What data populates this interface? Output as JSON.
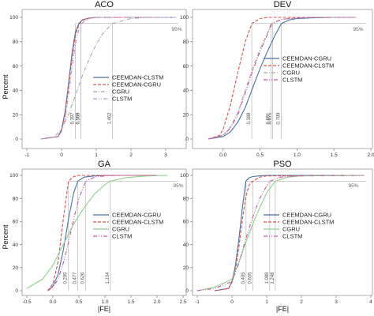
{
  "figure": {
    "ylabel": "Percent",
    "xlabel": "|FE|"
  },
  "chart_data": [
    {
      "type": "line",
      "title": "ACO",
      "xlabel": "",
      "ylabel": "Percent",
      "xlim": [
        -1,
        3.5
      ],
      "ylim": [
        0,
        100
      ],
      "xticks": [
        "-1",
        "0",
        "1",
        "2",
        "3"
      ],
      "yticks": [
        "0",
        "20",
        "40",
        "60",
        "80",
        "100"
      ],
      "percentile_label": "95%",
      "legend": {
        "position": "center-right"
      },
      "annotations": [
        "0.397",
        "0.559",
        "0.560",
        "1.462"
      ],
      "series": [
        {
          "name": "CEEMDAN-CLSTM",
          "color": "#4a6fa5",
          "dash": "solid",
          "x": [
            -0.6,
            -0.1,
            0.0,
            0.1,
            0.2,
            0.3,
            0.4,
            0.5,
            0.6,
            0.8,
            1.0,
            3.3
          ],
          "y": [
            0,
            2,
            8,
            22,
            45,
            70,
            88,
            95,
            98,
            99.5,
            100,
            100
          ]
        },
        {
          "name": "CEEMDAN-CGRU",
          "color": "#d9534f",
          "dash": "dashed",
          "x": [
            -0.6,
            -0.1,
            0.0,
            0.1,
            0.2,
            0.3,
            0.4,
            0.5,
            0.6,
            0.8,
            1.0,
            3.3
          ],
          "y": [
            0,
            2,
            7,
            20,
            42,
            66,
            85,
            94,
            97.5,
            99.5,
            100,
            100
          ]
        },
        {
          "name": "CGRU",
          "color": "#a8a8a8",
          "dash": "dashdot",
          "x": [
            -0.6,
            -0.2,
            0.0,
            0.2,
            0.4,
            0.6,
            0.8,
            1.0,
            1.2,
            1.46,
            2.0,
            2.5,
            3.3
          ],
          "y": [
            0,
            2,
            8,
            20,
            36,
            52,
            66,
            78,
            87,
            95,
            99,
            100,
            100
          ]
        },
        {
          "name": "CLSTM",
          "color": "#b59ad1",
          "dash": "dashdotdot",
          "x": [
            -0.6,
            -0.1,
            0.0,
            0.1,
            0.2,
            0.3,
            0.4,
            0.5,
            0.6,
            0.8,
            1.0,
            3.3
          ],
          "y": [
            0,
            2,
            6,
            16,
            36,
            58,
            78,
            90,
            95.5,
            99,
            100,
            100
          ]
        }
      ]
    },
    {
      "type": "line",
      "title": "DEV",
      "xlabel": "",
      "ylabel": "",
      "xlim": [
        -0.35,
        2.0
      ],
      "ylim": [
        0,
        100
      ],
      "xticks": [
        "0.0",
        "0.5",
        "1.0",
        "1.5",
        "2.0"
      ],
      "yticks": [
        "0",
        "20",
        "40",
        "60",
        "80",
        "100"
      ],
      "percentile_label": "95%",
      "legend": {
        "position": "center-right"
      },
      "annotations": [
        "0.388",
        "0.651",
        "0.671",
        "0.789"
      ],
      "series": [
        {
          "name": "CEEMDAN-CGRU",
          "color": "#4a6fa5",
          "dash": "solid",
          "x": [
            -0.2,
            0.0,
            0.1,
            0.2,
            0.3,
            0.4,
            0.5,
            0.6,
            0.7,
            0.79,
            0.9,
            1.0,
            1.2,
            1.5,
            1.8
          ],
          "y": [
            0,
            2,
            6,
            14,
            26,
            42,
            58,
            72,
            85,
            95,
            98,
            99,
            99.6,
            100,
            100
          ]
        },
        {
          "name": "CEEMDAN-CLSTM",
          "color": "#d9534f",
          "dash": "dashed",
          "x": [
            -0.2,
            -0.05,
            0.0,
            0.1,
            0.2,
            0.3,
            0.39,
            0.5,
            0.6,
            0.8,
            1.8
          ],
          "y": [
            0,
            3,
            8,
            28,
            55,
            80,
            95,
            99,
            100,
            100,
            100
          ]
        },
        {
          "name": "CGRU",
          "color": "#a8a8a8",
          "dash": "dashdot",
          "x": [
            -0.2,
            0.0,
            0.1,
            0.2,
            0.3,
            0.4,
            0.5,
            0.6,
            0.67,
            0.8,
            1.0,
            1.2,
            1.8
          ],
          "y": [
            0,
            3,
            10,
            22,
            40,
            58,
            74,
            87,
            95,
            98.5,
            99.5,
            100,
            100
          ]
        },
        {
          "name": "CLSTM",
          "color": "#c45aa8",
          "dash": "dashdotdot",
          "x": [
            -0.2,
            0.0,
            0.1,
            0.2,
            0.3,
            0.4,
            0.5,
            0.6,
            0.65,
            0.8,
            1.0,
            1.2,
            1.8
          ],
          "y": [
            0,
            3,
            9,
            20,
            38,
            56,
            72,
            86,
            95,
            98.5,
            99.5,
            100,
            100
          ]
        }
      ]
    },
    {
      "type": "line",
      "title": "GA",
      "xlabel": "|FE|",
      "ylabel": "Percent",
      "xlim": [
        -0.5,
        2.5
      ],
      "ylim": [
        0,
        100
      ],
      "xticks": [
        "-0.5",
        "0.0",
        "0.5",
        "1.0",
        "1.5",
        "2.0",
        "2.5"
      ],
      "yticks": [
        "0",
        "20",
        "40",
        "60",
        "80",
        "100"
      ],
      "percentile_label": "95%",
      "legend": {
        "position": "center-right"
      },
      "annotations": [
        "0.299",
        "0.477",
        "0.626",
        "1.104"
      ],
      "series": [
        {
          "name": "CEEMDAN-CGRU",
          "color": "#4a6fa5",
          "dash": "solid",
          "x": [
            -0.1,
            0.0,
            0.1,
            0.2,
            0.3,
            0.4,
            0.48,
            0.6,
            0.8,
            1.0,
            2.0
          ],
          "y": [
            0,
            4,
            14,
            35,
            62,
            85,
            95,
            98.5,
            99.5,
            100,
            100
          ]
        },
        {
          "name": "CEEMDAN-CLSTM",
          "color": "#d9534f",
          "dash": "dashed",
          "x": [
            -0.1,
            0.0,
            0.1,
            0.2,
            0.3,
            0.4,
            0.5,
            0.7,
            2.0
          ],
          "y": [
            0,
            6,
            25,
            62,
            95,
            99,
            100,
            100,
            100
          ]
        },
        {
          "name": "CGRU",
          "color": "#8fd18a",
          "dash": "solid",
          "x": [
            -0.5,
            -0.2,
            0.0,
            0.2,
            0.4,
            0.6,
            0.8,
            1.0,
            1.1,
            1.4,
            1.8,
            2.2
          ],
          "y": [
            2,
            10,
            22,
            40,
            58,
            72,
            84,
            92,
            95,
            98,
            99.5,
            100
          ]
        },
        {
          "name": "CLSTM",
          "color": "#c45aa8",
          "dash": "dashdotdot",
          "x": [
            -0.1,
            0.0,
            0.1,
            0.2,
            0.3,
            0.4,
            0.5,
            0.63,
            0.8,
            1.0,
            1.2,
            2.0
          ],
          "y": [
            0,
            3,
            10,
            24,
            42,
            62,
            80,
            95,
            98.5,
            99.5,
            100,
            100
          ]
        }
      ]
    },
    {
      "type": "line",
      "title": "PSO",
      "xlabel": "|FE|",
      "ylabel": "",
      "xlim": [
        -1,
        4
      ],
      "ylim": [
        0,
        100
      ],
      "xticks": [
        "-1",
        "0",
        "1",
        "2",
        "3",
        "4"
      ],
      "yticks": [
        "0",
        "20",
        "40",
        "60",
        "80",
        "100"
      ],
      "percentile_label": "95%",
      "legend": {
        "position": "center-right"
      },
      "annotations": [
        "0.405",
        "0.605",
        "1.088",
        "1.248"
      ],
      "series": [
        {
          "name": "CEEMDAN-CGRU",
          "color": "#4a6fa5",
          "dash": "solid",
          "x": [
            -0.5,
            -0.1,
            0.0,
            0.1,
            0.2,
            0.3,
            0.4,
            0.5,
            0.6,
            0.8,
            1.0,
            3.8
          ],
          "y": [
            0,
            2,
            8,
            22,
            45,
            72,
            95,
            98,
            99,
            99.6,
            100,
            100
          ]
        },
        {
          "name": "CEEMDAN-CLSTM",
          "color": "#d9534f",
          "dash": "dashed",
          "x": [
            -0.5,
            -0.1,
            0.0,
            0.1,
            0.2,
            0.3,
            0.4,
            0.5,
            0.6,
            0.8,
            1.0,
            3.8
          ],
          "y": [
            0,
            2,
            7,
            18,
            38,
            62,
            82,
            92,
            95,
            98.5,
            99.5,
            100
          ]
        },
        {
          "name": "CGRU",
          "color": "#8fd18a",
          "dash": "solid",
          "x": [
            -1.0,
            -0.5,
            0.0,
            0.2,
            0.4,
            0.6,
            0.8,
            1.0,
            1.25,
            1.6,
            2.0,
            3.8
          ],
          "y": [
            0,
            3,
            10,
            25,
            42,
            58,
            72,
            85,
            95,
            98.5,
            99.5,
            100
          ]
        },
        {
          "name": "CLSTM",
          "color": "#c45aa8",
          "dash": "dashdotdot",
          "x": [
            -1.0,
            -0.5,
            0.0,
            0.2,
            0.4,
            0.6,
            0.8,
            1.0,
            1.09,
            1.4,
            1.8,
            3.8
          ],
          "y": [
            0,
            2,
            8,
            24,
            45,
            64,
            80,
            91,
            95,
            98.5,
            99.5,
            100
          ]
        }
      ]
    }
  ]
}
